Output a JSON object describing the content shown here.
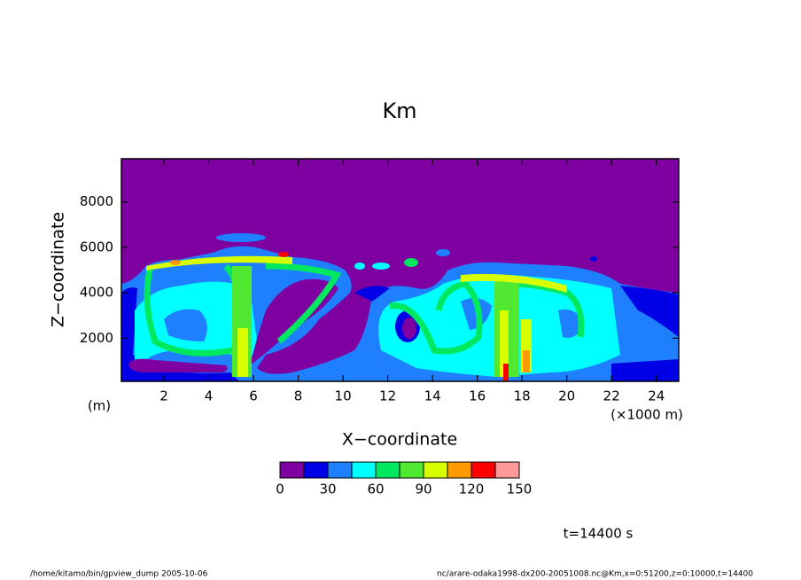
{
  "chart_data": {
    "type": "contour",
    "title": "Km",
    "x_label": "X−coordinate",
    "y_label": "Z−coordinate",
    "x_unit": "(×1000 m)",
    "y_unit": "(m)",
    "xlim": [
      0.1,
      25.0
    ],
    "xticks": [
      2,
      4,
      6,
      8,
      10,
      12,
      14,
      16,
      18,
      20,
      22,
      24
    ],
    "ylim": [
      100,
      9900
    ],
    "yticks": [
      2000,
      4000,
      6000,
      8000
    ],
    "levels": [
      0,
      15,
      30,
      45,
      60,
      75,
      90,
      105,
      120,
      135,
      150
    ],
    "colors": [
      "#7f00a0",
      "#0000e6",
      "#1e80ff",
      "#00ffff",
      "#00e860",
      "#50e830",
      "#d8ff00",
      "#ff9900",
      "#ff0000",
      "#ff9898"
    ],
    "colorbar_ticks": [
      0,
      30,
      60,
      90,
      120,
      150
    ],
    "annotation": "t=14400 s",
    "footer_left": "/home/kitamo/bin/gpview_dump  2005-10-06",
    "footer_right": "nc/arare-odaka1998-dx200-20051008.nc@Km,x=0:51200,z=0:10000,t=14400"
  }
}
